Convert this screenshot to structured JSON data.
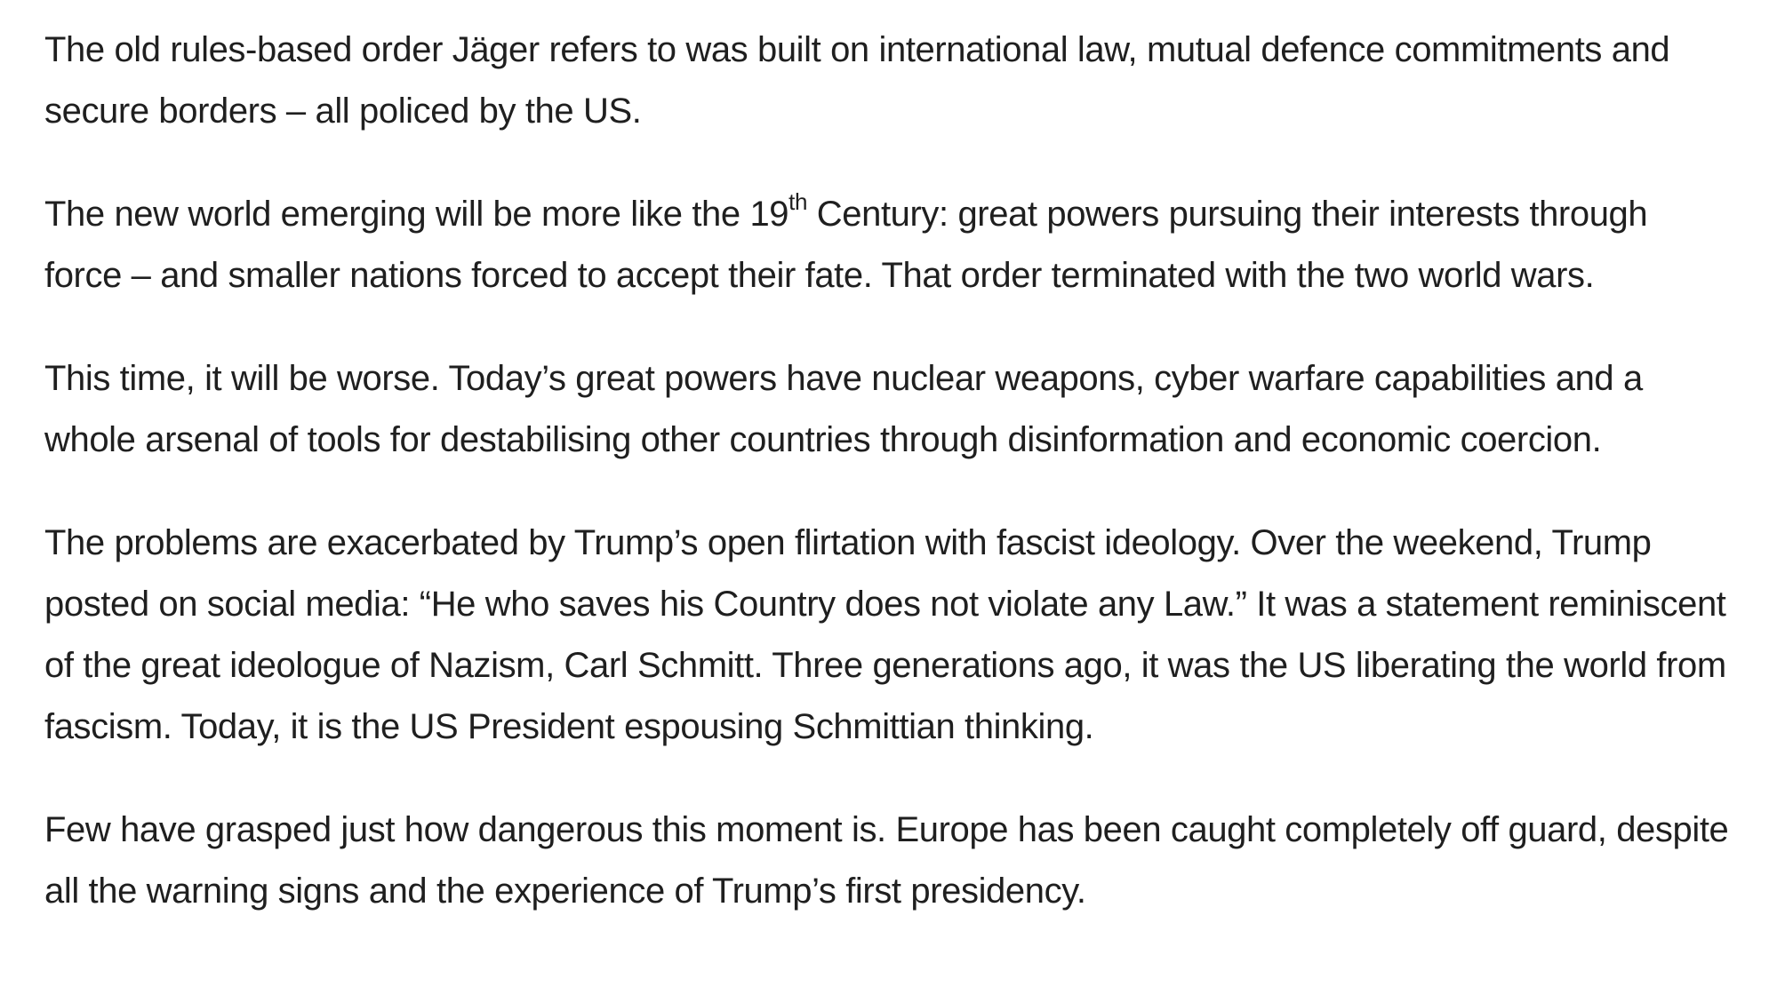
{
  "article": {
    "paragraphs": [
      {
        "text": "The old rules-based order Jäger refers to was built on international law, mutual defence commitments and secure borders – all policed by the US."
      },
      {
        "text_before": "The new world emerging will be more like the 19",
        "superscript": "th",
        "text_after": " Century: great powers pursuing their interests through force – and smaller nations forced to accept their fate. That order terminated with the two world wars."
      },
      {
        "text": "This time, it will be worse. Today’s great powers have nuclear weapons, cyber warfare capabilities and a whole arsenal of tools for destabilising other countries through disinformation and economic coercion."
      },
      {
        "text": "The problems are exacerbated by Trump’s open flirtation with fascist ideology. Over the weekend, Trump posted on social media: “He who saves his Country does not violate any Law.” It was a statement reminiscent of the great ideologue of Nazism, Carl Schmitt. Three generations ago, it was the US liberating the world from fascism. Today, it is the US President espousing Schmittian thinking."
      },
      {
        "text": "Few have grasped just how dangerous this moment is. Europe has been caught completely off guard, despite all the warning signs and the experience of Trump’s first presidency."
      }
    ]
  }
}
